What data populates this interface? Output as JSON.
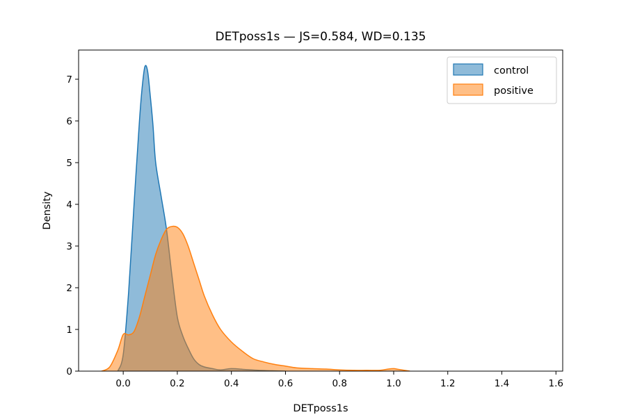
{
  "chart_data": {
    "type": "area",
    "title": "DETposs1s — JS=0.584, WD=0.135",
    "xlabel": "DETposs1s",
    "ylabel": "Density",
    "xlim": [
      -0.165,
      1.625
    ],
    "ylim": [
      0,
      7.7
    ],
    "xticks": [
      0.0,
      0.2,
      0.4,
      0.6,
      0.8,
      1.0,
      1.2,
      1.4,
      1.6
    ],
    "yticks": [
      0,
      1,
      2,
      3,
      4,
      5,
      6,
      7
    ],
    "grid": false,
    "legend": "top-right",
    "series": [
      {
        "name": "control",
        "color": "#1f77b4",
        "fill_alpha": 0.5,
        "x": [
          -0.02,
          0.0,
          0.02,
          0.04,
          0.06,
          0.07,
          0.08,
          0.09,
          0.1,
          0.11,
          0.12,
          0.14,
          0.16,
          0.18,
          0.2,
          0.22,
          0.24,
          0.26,
          0.28,
          0.3,
          0.33,
          0.36,
          0.4,
          0.45,
          0.5,
          0.55,
          0.6
        ],
        "y": [
          0.0,
          0.4,
          1.9,
          4.0,
          6.0,
          6.8,
          7.3,
          7.2,
          6.6,
          5.9,
          5.0,
          4.2,
          3.4,
          2.3,
          1.3,
          0.85,
          0.55,
          0.3,
          0.16,
          0.1,
          0.06,
          0.03,
          0.06,
          0.04,
          0.02,
          0.01,
          0.0
        ]
      },
      {
        "name": "positive",
        "color": "#ff7f0e",
        "fill_alpha": 0.5,
        "x": [
          -0.08,
          -0.05,
          -0.02,
          0.0,
          0.02,
          0.04,
          0.06,
          0.08,
          0.1,
          0.12,
          0.14,
          0.16,
          0.18,
          0.2,
          0.22,
          0.24,
          0.26,
          0.28,
          0.3,
          0.33,
          0.36,
          0.4,
          0.44,
          0.48,
          0.52,
          0.56,
          0.6,
          0.64,
          0.7,
          0.75,
          0.8,
          0.85,
          0.9,
          0.95,
          0.98,
          1.0,
          1.02,
          1.06
        ],
        "y": [
          0.0,
          0.1,
          0.5,
          0.88,
          0.87,
          0.95,
          1.3,
          1.8,
          2.3,
          2.8,
          3.15,
          3.4,
          3.47,
          3.45,
          3.3,
          3.0,
          2.6,
          2.2,
          1.8,
          1.35,
          1.0,
          0.7,
          0.48,
          0.3,
          0.22,
          0.16,
          0.12,
          0.08,
          0.06,
          0.05,
          0.03,
          0.02,
          0.02,
          0.02,
          0.05,
          0.06,
          0.04,
          0.0
        ]
      }
    ]
  }
}
